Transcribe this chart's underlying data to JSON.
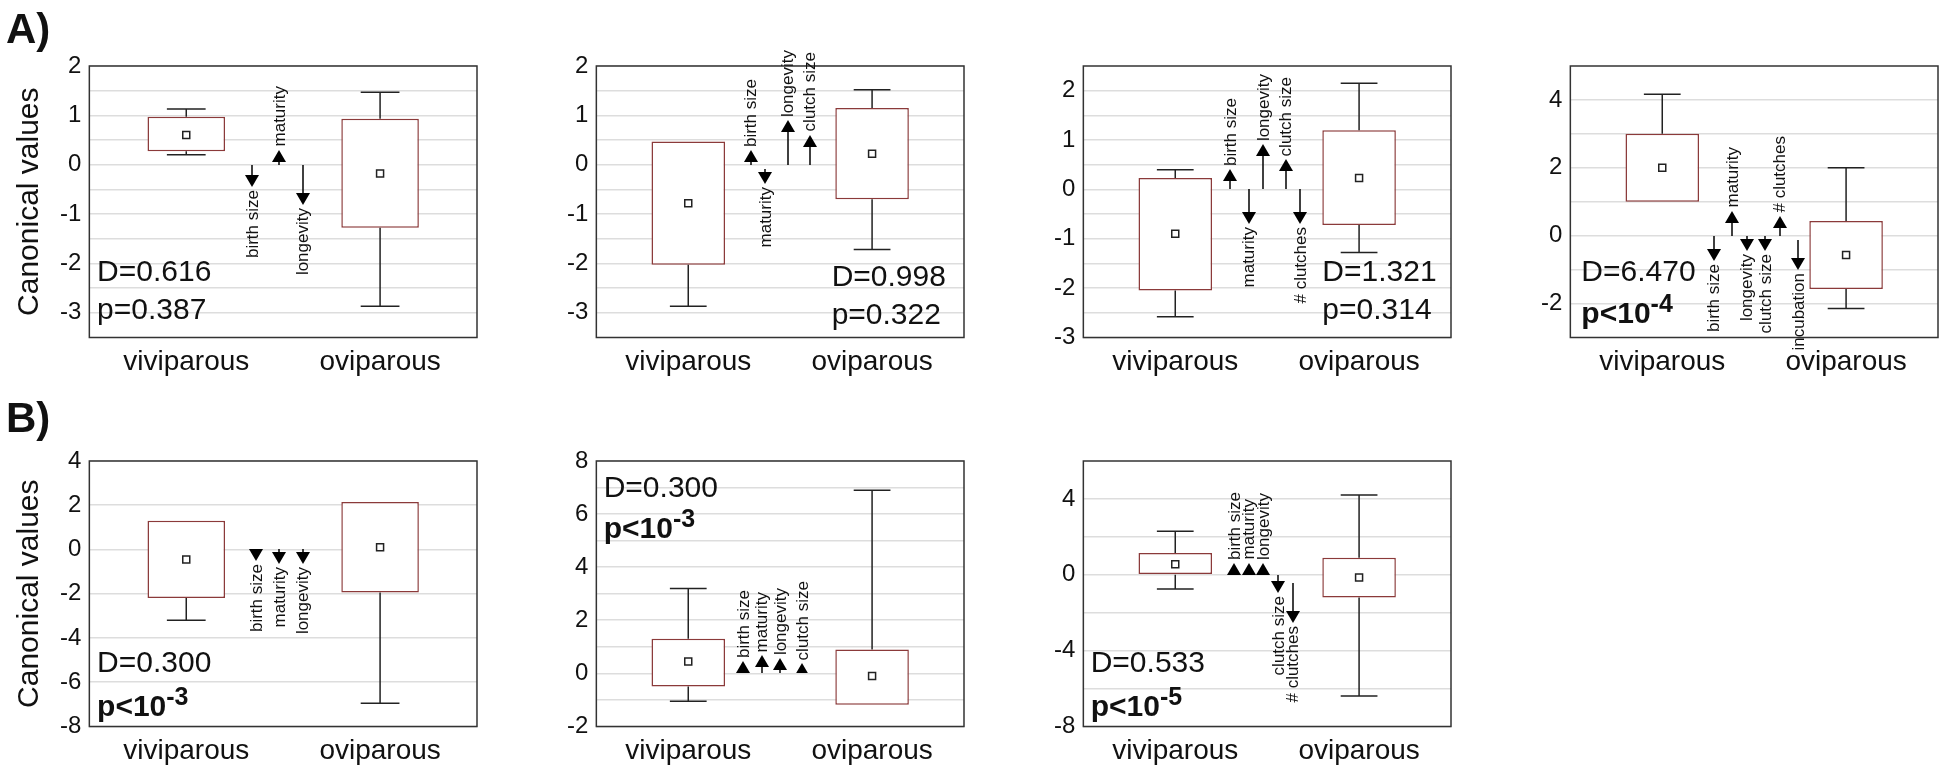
{
  "chart_data": [
    {
      "type": "box",
      "ylabel": "Canonical values",
      "categories": [
        "viviparous",
        "oviparous"
      ],
      "color": "#8b3a3a",
      "marker": "square",
      "grid": "y",
      "ylim": [
        -3.5,
        2
      ],
      "yticks": [
        -3,
        {
          "value": -2.5,
          "label": null
        },
        -2,
        {
          "value": -1.5,
          "label": null
        },
        -1,
        {
          "value": -0.5,
          "label": null
        },
        0,
        {
          "value": 0.5,
          "label": null
        },
        1,
        {
          "value": 1.5,
          "label": null
        },
        2
      ],
      "boxes": [
        {
          "low": 0.2,
          "q1": 0.27,
          "median": 0.6,
          "q3": 0.97,
          "high": 1.13
        },
        {
          "low": -2.87,
          "q1": -1.28,
          "median": -0.18,
          "q3": 0.93,
          "high": 1.47
        }
      ],
      "annotations": [
        "A)",
        "D=0.616",
        "p=0.387",
        "birth size",
        "maturity",
        "longevity"
      ]
    },
    {
      "type": "box",
      "categories": [
        "viviparous",
        "oviparous"
      ],
      "color": "#8b3a3a",
      "marker": "square",
      "grid": "y",
      "ylim": [
        -3.5,
        2
      ],
      "yticks": [
        -3,
        {
          "value": -2.5,
          "label": null
        },
        -2,
        {
          "value": -1.5,
          "label": null
        },
        -1,
        {
          "value": -0.5,
          "label": null
        },
        0,
        {
          "value": 0.5,
          "label": null
        },
        1,
        {
          "value": 1.5,
          "label": null
        },
        2
      ],
      "boxes": [
        {
          "low": -2.87,
          "q1": -2.03,
          "median": -0.78,
          "q3": 0.47,
          "high": 0.47
        },
        {
          "low": -1.72,
          "q1": -0.7,
          "median": 0.22,
          "q3": 1.15,
          "high": 1.52
        }
      ],
      "annotations": [
        "D=0.998",
        "p=0.322",
        "birth size",
        "maturity",
        "longevity",
        "clutch size"
      ]
    },
    {
      "type": "box",
      "categories": [
        "viviparous",
        "oviparous"
      ],
      "color": "#8b3a3a",
      "marker": "square",
      "grid": "y",
      "ylim": [
        -3,
        2.5
      ],
      "yticks": [
        -3,
        {
          "value": -2.5,
          "label": null
        },
        -2,
        {
          "value": -1.5,
          "label": null
        },
        -1,
        {
          "value": -0.5,
          "label": null
        },
        0,
        {
          "value": 0.5,
          "label": null
        },
        1,
        {
          "value": 1.5,
          "label": null
        },
        2
      ],
      "boxes": [
        {
          "low": -2.58,
          "q1": -2.05,
          "median": -0.9,
          "q3": 0.23,
          "high": 0.4
        },
        {
          "low": -1.28,
          "q1": -0.72,
          "median": 0.23,
          "q3": 1.2,
          "high": 2.15
        }
      ],
      "annotations": [
        "D=1.321",
        "p=0.314",
        "birth size",
        "maturity",
        "longevity",
        "clutch size",
        "# clutches"
      ]
    },
    {
      "type": "box",
      "categories": [
        "viviparous",
        "oviparous"
      ],
      "color": "#8b3a3a",
      "marker": "square",
      "grid": "y",
      "ylim": [
        -3,
        5
      ],
      "yticks": [
        -2,
        {
          "value": -1,
          "label": null
        },
        0,
        {
          "value": 1,
          "label": null
        },
        2,
        {
          "value": 3,
          "label": null
        },
        4
      ],
      "boxes": [
        {
          "low": 1,
          "q1": 1,
          "median": 2,
          "q3": 3,
          "high": 4.17
        },
        {
          "low": -2.15,
          "q1": -1.57,
          "median": -0.57,
          "q3": 0.43,
          "high": 2
        }
      ],
      "annotations": [
        "D=6.470",
        "p<10$^{-4}$",
        "birth size",
        "maturity",
        "longevity",
        "clutch size",
        "# clutches",
        "incubation"
      ]
    },
    {
      "type": "box",
      "ylabel": "Canonical values",
      "categories": [
        "viviparous",
        "oviparous"
      ],
      "color": "#8b3a3a",
      "marker": "square",
      "grid": "y",
      "ylim": [
        -8,
        4
      ],
      "yticks": [
        -8,
        -6,
        -4,
        -2,
        0,
        2,
        4
      ],
      "boxes": [
        {
          "low": -3.2,
          "q1": -2.2,
          "median": -0.45,
          "q3": 1.3,
          "high": 1.3
        },
        {
          "low": -6.95,
          "q1": -1.95,
          "median": 0.1,
          "q3": 2.15,
          "high": 2.15
        }
      ],
      "annotations": [
        "B)",
        "D=0.300",
        "p<10$^{-3}$",
        "birth size",
        "maturity",
        "longevity"
      ]
    },
    {
      "type": "box",
      "categories": [
        "viviparous",
        "oviparous"
      ],
      "color": "#8b3a3a",
      "marker": "square",
      "grid": "y",
      "ylim": [
        -2,
        8
      ],
      "yticks": [
        -2,
        {
          "value": -1,
          "label": null
        },
        0,
        {
          "value": 1,
          "label": null
        },
        2,
        {
          "value": 3,
          "label": null
        },
        4,
        {
          "value": 5,
          "label": null
        },
        6,
        {
          "value": 7,
          "label": null
        },
        8
      ],
      "boxes": [
        {
          "low": -1.05,
          "q1": -0.5,
          "median": 0.45,
          "q3": 1.3,
          "high": 3.2
        },
        {
          "low": -1.18,
          "q1": -1.18,
          "median": -0.1,
          "q3": 0.9,
          "high": 6.9
        }
      ],
      "annotations": [
        "D=0.300",
        "p<10$^{-3}$",
        "birth size",
        "maturity",
        "longevity",
        "clutch size"
      ]
    },
    {
      "type": "box",
      "categories": [
        "viviparous",
        "oviparous"
      ],
      "color": "#8b3a3a",
      "marker": "square",
      "grid": "y",
      "ylim": [
        -8,
        6
      ],
      "yticks": [
        -8,
        {
          "value": -6,
          "label": null
        },
        -4,
        {
          "value": -2,
          "label": null
        },
        0,
        {
          "value": 2,
          "label": null
        },
        4
      ],
      "boxes": [
        {
          "low": -0.75,
          "q1": 0,
          "median": 0.55,
          "q3": 1.15,
          "high": 2.3
        },
        {
          "low": -6.4,
          "q1": -1.2,
          "median": -0.15,
          "q3": 0.9,
          "high": 4.2
        }
      ],
      "annotations": [
        "D=0.533",
        "p<10$^{-5}$",
        "birth size",
        "maturity",
        "longevity",
        "clutch size",
        "# clutches"
      ]
    }
  ]
}
